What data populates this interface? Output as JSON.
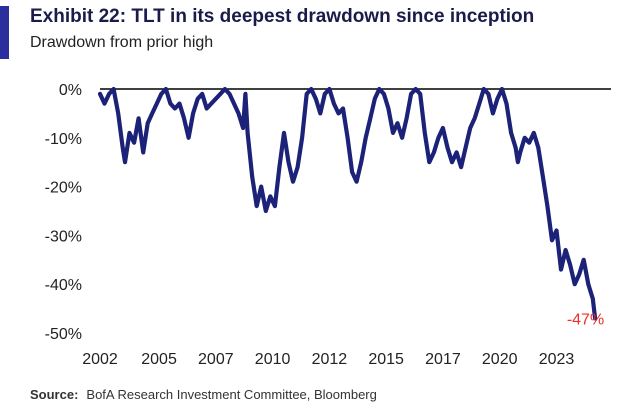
{
  "exhibit_title": "Exhibit 22: TLT in its deepest drawdown since inception",
  "subtitle": "Drawdown from prior high",
  "source_label": "Source:",
  "source_text": "BofA Research Investment Committee, Bloomberg",
  "colors": {
    "accent": "#2b2f9e",
    "line": "#1c2278",
    "end_label": "#e8322b"
  },
  "chart_data": {
    "type": "line",
    "title": "Exhibit 22: TLT in its deepest drawdown since inception",
    "subtitle": "Drawdown from prior high",
    "xlabel": "",
    "ylabel": "",
    "xlim": [
      2002.5,
      2025.0
    ],
    "ylim": [
      -50,
      0
    ],
    "x_ticks": [
      {
        "value": 2002.5,
        "label": "2002"
      },
      {
        "value": 2005.1,
        "label": "2005"
      },
      {
        "value": 2007.6,
        "label": "2007"
      },
      {
        "value": 2010.1,
        "label": "2010"
      },
      {
        "value": 2012.6,
        "label": "2012"
      },
      {
        "value": 2015.1,
        "label": "2015"
      },
      {
        "value": 2017.6,
        "label": "2017"
      },
      {
        "value": 2020.1,
        "label": "2020"
      },
      {
        "value": 2022.6,
        "label": "2023"
      }
    ],
    "y_ticks": [
      {
        "value": 0,
        "label": "0%"
      },
      {
        "value": -10,
        "label": "-10%"
      },
      {
        "value": -20,
        "label": "-20%"
      },
      {
        "value": -30,
        "label": "-30%"
      },
      {
        "value": -40,
        "label": "-40%"
      },
      {
        "value": -50,
        "label": "-50%"
      }
    ],
    "grid": false,
    "annotations": [
      {
        "text": "-47%",
        "x": 2024.7,
        "y": -47
      }
    ],
    "series": [
      {
        "values": [
          [
            2002.5,
            -1
          ],
          [
            2002.7,
            -3
          ],
          [
            2002.9,
            -1
          ],
          [
            2003.1,
            0
          ],
          [
            2003.3,
            -5
          ],
          [
            2003.5,
            -12
          ],
          [
            2003.6,
            -15
          ],
          [
            2003.8,
            -9
          ],
          [
            2004.0,
            -11
          ],
          [
            2004.2,
            -6
          ],
          [
            2004.4,
            -13
          ],
          [
            2004.6,
            -7
          ],
          [
            2004.8,
            -5
          ],
          [
            2005.0,
            -3
          ],
          [
            2005.2,
            -1
          ],
          [
            2005.4,
            0
          ],
          [
            2005.6,
            -3
          ],
          [
            2005.8,
            -4
          ],
          [
            2006.0,
            -3
          ],
          [
            2006.2,
            -6
          ],
          [
            2006.4,
            -10
          ],
          [
            2006.6,
            -5
          ],
          [
            2006.8,
            -2
          ],
          [
            2007.0,
            -1
          ],
          [
            2007.2,
            -4
          ],
          [
            2007.4,
            -3
          ],
          [
            2007.6,
            -2
          ],
          [
            2007.8,
            -1
          ],
          [
            2008.0,
            0
          ],
          [
            2008.2,
            -1
          ],
          [
            2008.4,
            -3
          ],
          [
            2008.6,
            -5
          ],
          [
            2008.8,
            -8
          ],
          [
            2008.9,
            -1
          ],
          [
            2009.0,
            -9
          ],
          [
            2009.2,
            -18
          ],
          [
            2009.4,
            -24
          ],
          [
            2009.6,
            -20
          ],
          [
            2009.8,
            -25
          ],
          [
            2010.0,
            -22
          ],
          [
            2010.2,
            -24
          ],
          [
            2010.4,
            -16
          ],
          [
            2010.6,
            -9
          ],
          [
            2010.8,
            -15
          ],
          [
            2011.0,
            -19
          ],
          [
            2011.2,
            -16
          ],
          [
            2011.4,
            -10
          ],
          [
            2011.6,
            -1
          ],
          [
            2011.8,
            0
          ],
          [
            2012.0,
            -2
          ],
          [
            2012.2,
            -5
          ],
          [
            2012.4,
            -1
          ],
          [
            2012.6,
            0
          ],
          [
            2012.8,
            -3
          ],
          [
            2013.0,
            -5
          ],
          [
            2013.2,
            -4
          ],
          [
            2013.4,
            -10
          ],
          [
            2013.6,
            -17
          ],
          [
            2013.8,
            -19
          ],
          [
            2014.0,
            -15
          ],
          [
            2014.2,
            -10
          ],
          [
            2014.4,
            -6
          ],
          [
            2014.6,
            -2
          ],
          [
            2014.8,
            0
          ],
          [
            2015.0,
            -1
          ],
          [
            2015.2,
            -4
          ],
          [
            2015.4,
            -9
          ],
          [
            2015.6,
            -7
          ],
          [
            2015.8,
            -10
          ],
          [
            2016.0,
            -6
          ],
          [
            2016.2,
            -1
          ],
          [
            2016.4,
            0
          ],
          [
            2016.6,
            -1
          ],
          [
            2016.8,
            -9
          ],
          [
            2017.0,
            -15
          ],
          [
            2017.2,
            -13
          ],
          [
            2017.4,
            -10
          ],
          [
            2017.6,
            -8
          ],
          [
            2017.8,
            -12
          ],
          [
            2018.0,
            -15
          ],
          [
            2018.2,
            -13
          ],
          [
            2018.4,
            -16
          ],
          [
            2018.6,
            -12
          ],
          [
            2018.8,
            -8
          ],
          [
            2019.0,
            -6
          ],
          [
            2019.2,
            -3
          ],
          [
            2019.4,
            0
          ],
          [
            2019.6,
            -1
          ],
          [
            2019.8,
            -5
          ],
          [
            2020.0,
            -2
          ],
          [
            2020.2,
            0
          ],
          [
            2020.4,
            -3
          ],
          [
            2020.6,
            -9
          ],
          [
            2020.8,
            -12
          ],
          [
            2020.9,
            -15
          ],
          [
            2021.0,
            -13
          ],
          [
            2021.2,
            -10
          ],
          [
            2021.4,
            -11
          ],
          [
            2021.6,
            -9
          ],
          [
            2021.8,
            -12
          ],
          [
            2022.0,
            -18
          ],
          [
            2022.2,
            -24
          ],
          [
            2022.4,
            -31
          ],
          [
            2022.6,
            -29
          ],
          [
            2022.8,
            -37
          ],
          [
            2023.0,
            -33
          ],
          [
            2023.2,
            -36
          ],
          [
            2023.4,
            -40
          ],
          [
            2023.6,
            -38
          ],
          [
            2023.8,
            -35
          ],
          [
            2024.0,
            -40
          ],
          [
            2024.2,
            -43
          ],
          [
            2024.3,
            -47
          ]
        ]
      }
    ]
  }
}
